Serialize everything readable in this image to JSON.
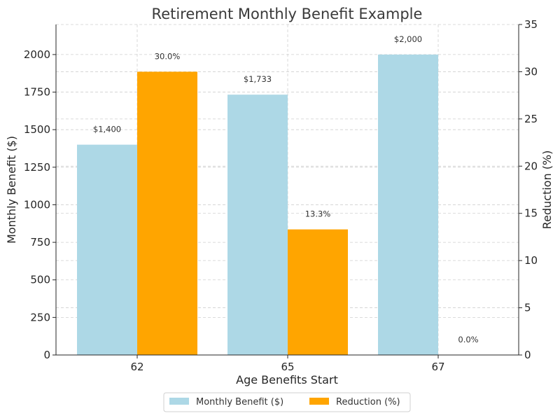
{
  "chart_data": {
    "type": "bar",
    "title": "Retirement Monthly Benefit Example",
    "xlabel": "Age Benefits Start",
    "ylabel_left": "Monthly Benefit ($)",
    "ylabel_right": "Reduction (%)",
    "categories": [
      "62",
      "65",
      "67"
    ],
    "series": [
      {
        "name": "Monthly Benefit ($)",
        "axis": "left",
        "color": "#ADD8E6",
        "values": [
          1400,
          1733,
          2000
        ],
        "labels": [
          "$1,400",
          "$1,733",
          "$2,000"
        ]
      },
      {
        "name": "Reduction (%)",
        "axis": "right",
        "color": "#FFA500",
        "values": [
          30.0,
          13.3,
          0.0
        ],
        "labels": [
          "30.0%",
          "13.3%",
          "0.0%"
        ]
      }
    ],
    "ylim_left": [
      0,
      2200
    ],
    "yticks_left": [
      0,
      250,
      500,
      750,
      1000,
      1250,
      1500,
      1750,
      2000
    ],
    "ylim_right": [
      0,
      35
    ],
    "yticks_right": [
      0,
      5,
      10,
      15,
      20,
      25,
      30,
      35
    ],
    "grid": true,
    "legend_placement": "bottom-center"
  }
}
